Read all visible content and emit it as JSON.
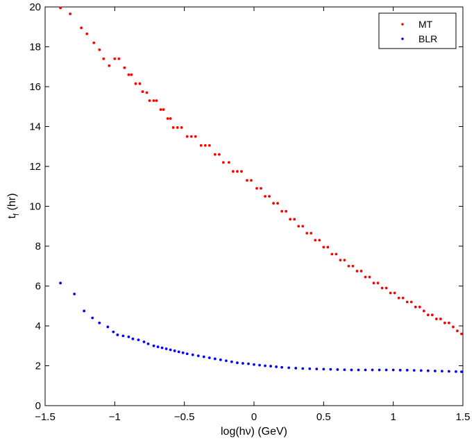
{
  "chart_data": {
    "type": "scatter",
    "title": "",
    "xlabel": "log(hν) (GeV)",
    "ylabel_main": "t",
    "ylabel_sub": "f",
    "ylabel_rest": " (hr)",
    "xlim": [
      -1.5,
      1.5
    ],
    "ylim": [
      0,
      20
    ],
    "xticks": [
      -1.5,
      -1,
      -0.5,
      0,
      0.5,
      1,
      1.5
    ],
    "xtick_labels": [
      "−1.5",
      "−1",
      "−0.5",
      "0",
      "0.5",
      "1",
      "1.5"
    ],
    "yticks": [
      0,
      2,
      4,
      6,
      8,
      10,
      12,
      14,
      16,
      18,
      20
    ],
    "ytick_labels": [
      "0",
      "2",
      "4",
      "6",
      "8",
      "10",
      "12",
      "14",
      "16",
      "18",
      "20"
    ],
    "grid": false,
    "legend_position": "top-right",
    "series": [
      {
        "name": "MT",
        "color": "#ff0000",
        "points": [
          [
            -1.39,
            19.95
          ],
          [
            -1.32,
            19.65
          ],
          [
            -1.24,
            18.95
          ],
          [
            -1.2,
            18.65
          ],
          [
            -1.15,
            18.2
          ],
          [
            -1.11,
            17.85
          ],
          [
            -1.08,
            17.4
          ],
          [
            -1.04,
            17.05
          ],
          [
            -1.0,
            17.4
          ],
          [
            -0.97,
            17.4
          ],
          [
            -0.93,
            16.95
          ],
          [
            -0.9,
            16.6
          ],
          [
            -0.88,
            16.6
          ],
          [
            -0.85,
            16.15
          ],
          [
            -0.82,
            16.15
          ],
          [
            -0.8,
            15.75
          ],
          [
            -0.77,
            15.7
          ],
          [
            -0.75,
            15.3
          ],
          [
            -0.72,
            15.3
          ],
          [
            -0.7,
            15.3
          ],
          [
            -0.67,
            14.85
          ],
          [
            -0.65,
            14.85
          ],
          [
            -0.62,
            14.4
          ],
          [
            -0.6,
            14.4
          ],
          [
            -0.58,
            13.95
          ],
          [
            -0.55,
            13.95
          ],
          [
            -0.52,
            13.95
          ],
          [
            -0.48,
            13.5
          ],
          [
            -0.45,
            13.5
          ],
          [
            -0.42,
            13.5
          ],
          [
            -0.38,
            13.05
          ],
          [
            -0.35,
            13.05
          ],
          [
            -0.32,
            13.05
          ],
          [
            -0.28,
            12.6
          ],
          [
            -0.25,
            12.6
          ],
          [
            -0.22,
            12.2
          ],
          [
            -0.18,
            12.2
          ],
          [
            -0.15,
            11.75
          ],
          [
            -0.12,
            11.75
          ],
          [
            -0.09,
            11.75
          ],
          [
            -0.05,
            11.3
          ],
          [
            -0.02,
            11.3
          ],
          [
            0.02,
            10.9
          ],
          [
            0.05,
            10.9
          ],
          [
            0.08,
            10.5
          ],
          [
            0.11,
            10.5
          ],
          [
            0.14,
            10.15
          ],
          [
            0.17,
            10.15
          ],
          [
            0.2,
            9.75
          ],
          [
            0.23,
            9.75
          ],
          [
            0.26,
            9.35
          ],
          [
            0.29,
            9.35
          ],
          [
            0.32,
            9.0
          ],
          [
            0.35,
            9.0
          ],
          [
            0.38,
            8.65
          ],
          [
            0.41,
            8.65
          ],
          [
            0.44,
            8.3
          ],
          [
            0.47,
            8.3
          ],
          [
            0.5,
            7.95
          ],
          [
            0.53,
            7.95
          ],
          [
            0.56,
            7.6
          ],
          [
            0.59,
            7.6
          ],
          [
            0.62,
            7.3
          ],
          [
            0.65,
            7.3
          ],
          [
            0.68,
            7.0
          ],
          [
            0.71,
            7.0
          ],
          [
            0.74,
            6.75
          ],
          [
            0.77,
            6.75
          ],
          [
            0.8,
            6.45
          ],
          [
            0.83,
            6.45
          ],
          [
            0.86,
            6.15
          ],
          [
            0.89,
            6.15
          ],
          [
            0.92,
            5.9
          ],
          [
            0.95,
            5.9
          ],
          [
            0.98,
            5.65
          ],
          [
            1.01,
            5.65
          ],
          [
            1.04,
            5.4
          ],
          [
            1.07,
            5.4
          ],
          [
            1.1,
            5.2
          ],
          [
            1.13,
            5.2
          ],
          [
            1.16,
            4.95
          ],
          [
            1.19,
            4.95
          ],
          [
            1.22,
            4.75
          ],
          [
            1.25,
            4.55
          ],
          [
            1.28,
            4.55
          ],
          [
            1.31,
            4.35
          ],
          [
            1.34,
            4.35
          ],
          [
            1.37,
            4.15
          ],
          [
            1.4,
            4.15
          ],
          [
            1.43,
            3.95
          ],
          [
            1.46,
            3.75
          ],
          [
            1.49,
            3.6
          ]
        ]
      },
      {
        "name": "BLR",
        "color": "#0000ff",
        "points": [
          [
            -1.39,
            6.15
          ],
          [
            -1.29,
            5.6
          ],
          [
            -1.22,
            4.75
          ],
          [
            -1.16,
            4.4
          ],
          [
            -1.11,
            4.15
          ],
          [
            -1.05,
            3.95
          ],
          [
            -1.01,
            3.7
          ],
          [
            -0.98,
            3.55
          ],
          [
            -0.94,
            3.5
          ],
          [
            -0.9,
            3.45
          ],
          [
            -0.87,
            3.35
          ],
          [
            -0.83,
            3.3
          ],
          [
            -0.79,
            3.2
          ],
          [
            -0.76,
            3.1
          ],
          [
            -0.72,
            3.0
          ],
          [
            -0.69,
            2.95
          ],
          [
            -0.66,
            2.9
          ],
          [
            -0.63,
            2.85
          ],
          [
            -0.6,
            2.8
          ],
          [
            -0.57,
            2.75
          ],
          [
            -0.54,
            2.7
          ],
          [
            -0.51,
            2.65
          ],
          [
            -0.48,
            2.6
          ],
          [
            -0.44,
            2.55
          ],
          [
            -0.4,
            2.5
          ],
          [
            -0.36,
            2.45
          ],
          [
            -0.32,
            2.4
          ],
          [
            -0.28,
            2.35
          ],
          [
            -0.24,
            2.3
          ],
          [
            -0.2,
            2.25
          ],
          [
            -0.16,
            2.2
          ],
          [
            -0.12,
            2.15
          ],
          [
            -0.08,
            2.12
          ],
          [
            -0.04,
            2.1
          ],
          [
            0.0,
            2.06
          ],
          [
            0.04,
            2.03
          ],
          [
            0.08,
            2.0
          ],
          [
            0.12,
            1.98
          ],
          [
            0.16,
            1.95
          ],
          [
            0.2,
            1.92
          ],
          [
            0.25,
            1.9
          ],
          [
            0.3,
            1.88
          ],
          [
            0.35,
            1.86
          ],
          [
            0.4,
            1.85
          ],
          [
            0.45,
            1.84
          ],
          [
            0.5,
            1.83
          ],
          [
            0.55,
            1.82
          ],
          [
            0.6,
            1.81
          ],
          [
            0.65,
            1.8
          ],
          [
            0.7,
            1.79
          ],
          [
            0.75,
            1.79
          ],
          [
            0.8,
            1.79
          ],
          [
            0.85,
            1.79
          ],
          [
            0.9,
            1.79
          ],
          [
            0.95,
            1.79
          ],
          [
            1.0,
            1.79
          ],
          [
            1.05,
            1.78
          ],
          [
            1.1,
            1.78
          ],
          [
            1.15,
            1.77
          ],
          [
            1.2,
            1.76
          ],
          [
            1.25,
            1.75
          ],
          [
            1.3,
            1.74
          ],
          [
            1.35,
            1.73
          ],
          [
            1.4,
            1.72
          ],
          [
            1.45,
            1.71
          ],
          [
            1.49,
            1.7
          ]
        ]
      }
    ]
  }
}
